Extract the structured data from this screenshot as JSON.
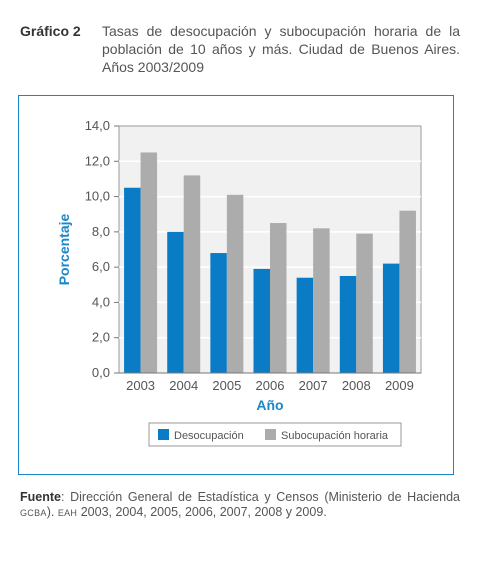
{
  "caption": {
    "label": "Gráfico 2",
    "title": "Tasas de desocupación y subocupación horaria de la población de 10 años y más. Ciudad de Buenos Aires. Años 2003/2009"
  },
  "source": {
    "label": "Fuente",
    "text1": ": Dirección General de Estadística y Censos (Ministerio de Hacienda ",
    "sc1": "GCBA",
    "text2": "). ",
    "sc2": "EAH",
    "text3": " 2003, 2004, 2005, 2006, 2007, 2008 y 2009."
  },
  "colors": {
    "frame": "#1a87c9",
    "desocupacion": "#0a7cc6",
    "subocupacion": "#acacac",
    "plot_bg": "#f1f1f1",
    "axis_title": "#1a87c9"
  },
  "chart_data": {
    "type": "bar",
    "categories": [
      "2003",
      "2004",
      "2005",
      "2006",
      "2007",
      "2008",
      "2009"
    ],
    "series": [
      {
        "name": "Desocupación",
        "values": [
          10.5,
          8.0,
          6.8,
          5.9,
          5.4,
          5.5,
          6.2
        ]
      },
      {
        "name": "Subocupación horaria",
        "values": [
          12.5,
          11.2,
          10.1,
          8.5,
          8.2,
          7.9,
          9.2
        ]
      }
    ],
    "title": "",
    "xlabel": "Año",
    "ylabel": "Porcentaje",
    "ylim": [
      0,
      14
    ],
    "yticks": [
      "0,0",
      "2,0",
      "4,0",
      "6,0",
      "8,0",
      "10,0",
      "12,0",
      "14,0"
    ],
    "grid": true,
    "legend": "bottom"
  }
}
